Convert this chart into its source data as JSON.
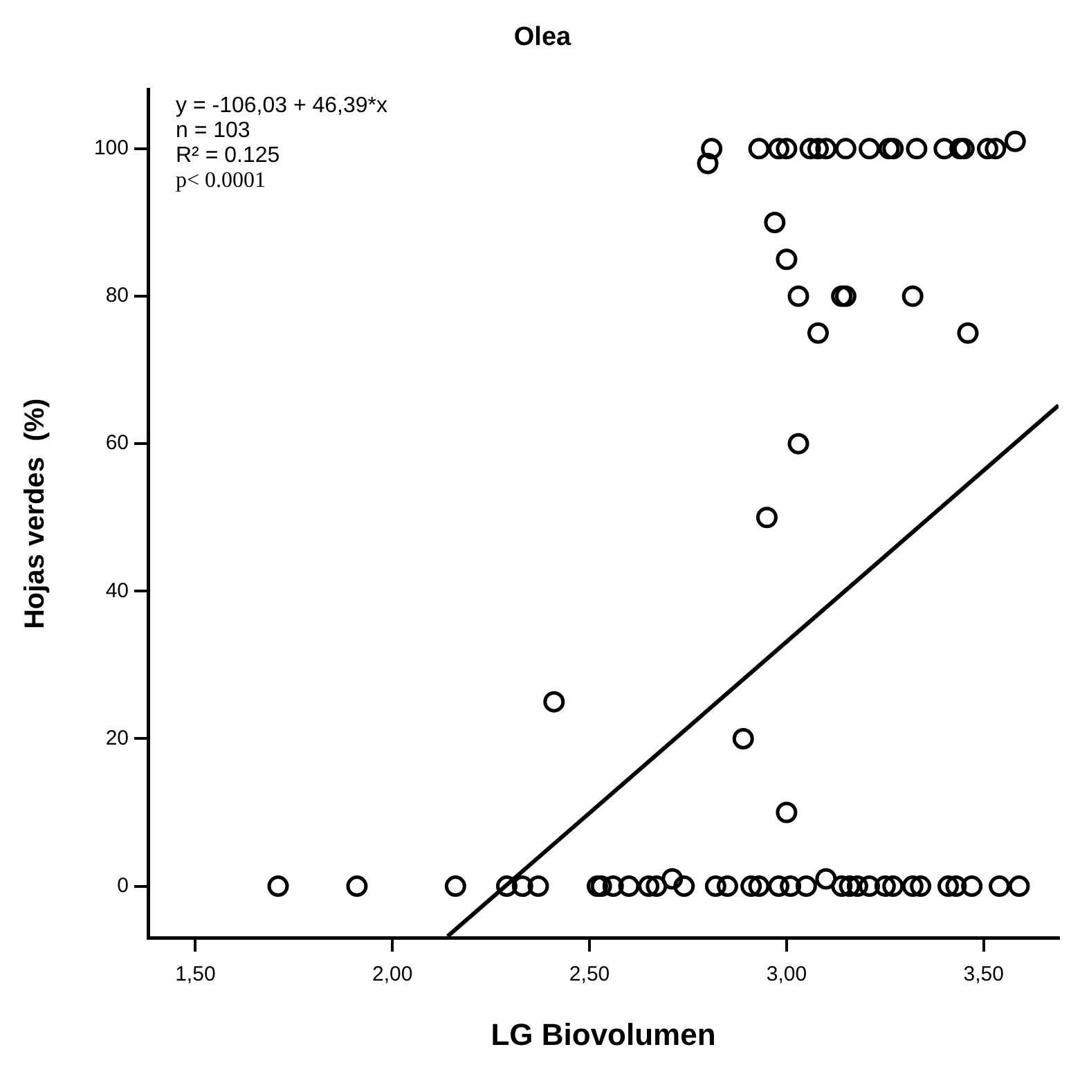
{
  "chart_data": {
    "type": "scatter",
    "title": "Olea",
    "xlabel": "LG Biovolumen",
    "ylabel": "Hojas verdes  (%)",
    "xlim": [
      1.38,
      3.69
    ],
    "ylim": [
      -7,
      108
    ],
    "xticks": [
      {
        "value": 1.5,
        "label": "1,50"
      },
      {
        "value": 2,
        "label": "2,00"
      },
      {
        "value": 2.5,
        "label": "2,50"
      },
      {
        "value": 3,
        "label": "3,00"
      },
      {
        "value": 3.5,
        "label": "3,50"
      }
    ],
    "yticks": [
      0,
      20,
      40,
      60,
      80,
      100
    ],
    "grid": false,
    "legend": false,
    "marker": "circle",
    "annotations": [
      "y = -106,03 + 46,39*x",
      "n = 103",
      "R² = 0.125",
      "p< 0.0001"
    ],
    "series": [
      {
        "color": "#000000",
        "x": [
          2.81,
          2.8,
          2.93,
          2.98,
          3.0,
          3.06,
          3.08,
          3.1,
          3.15,
          3.21,
          3.26,
          3.27,
          3.33,
          3.4,
          3.44,
          3.45,
          3.51,
          3.53,
          3.58
        ],
        "values": [
          100,
          98,
          100,
          100,
          100,
          100,
          100,
          100,
          100,
          100,
          100,
          100,
          100,
          100,
          100,
          100,
          100,
          100,
          101
        ]
      },
      {
        "color": "#000000",
        "x": [
          2.97,
          3.0,
          3.03,
          3.14,
          3.15,
          3.32,
          3.08,
          3.46,
          3.03,
          2.95,
          2.41,
          2.89,
          3.0
        ],
        "values": [
          90,
          85,
          80,
          80,
          80,
          80,
          75,
          75,
          60,
          50,
          25,
          20,
          10
        ]
      },
      {
        "color": "#000000",
        "x": [
          1.71,
          1.91,
          2.16,
          2.29,
          2.33,
          2.37,
          2.52,
          2.53,
          2.56,
          2.6,
          2.65,
          2.67,
          2.71,
          2.74,
          2.82,
          2.85,
          2.91,
          2.93,
          2.98,
          3.01,
          3.05,
          3.1,
          3.14,
          3.16,
          3.18,
          3.21,
          3.25,
          3.27,
          3.32,
          3.34,
          3.41,
          3.43,
          3.47,
          3.54,
          3.59
        ],
        "values": [
          0,
          0,
          0,
          0,
          0,
          0,
          0,
          0,
          0,
          0,
          0,
          0,
          1,
          0,
          0,
          0,
          0,
          0,
          0,
          0,
          0,
          1,
          0,
          0,
          0,
          0,
          0,
          0,
          0,
          0,
          0,
          0,
          0,
          0,
          0
        ]
      },
      {
        "type": "line",
        "color": "#000000",
        "marker": "none",
        "line_style": "solid",
        "x": [
          2.14,
          3.69
        ],
        "values": [
          -6.8,
          65.2
        ]
      }
    ]
  }
}
